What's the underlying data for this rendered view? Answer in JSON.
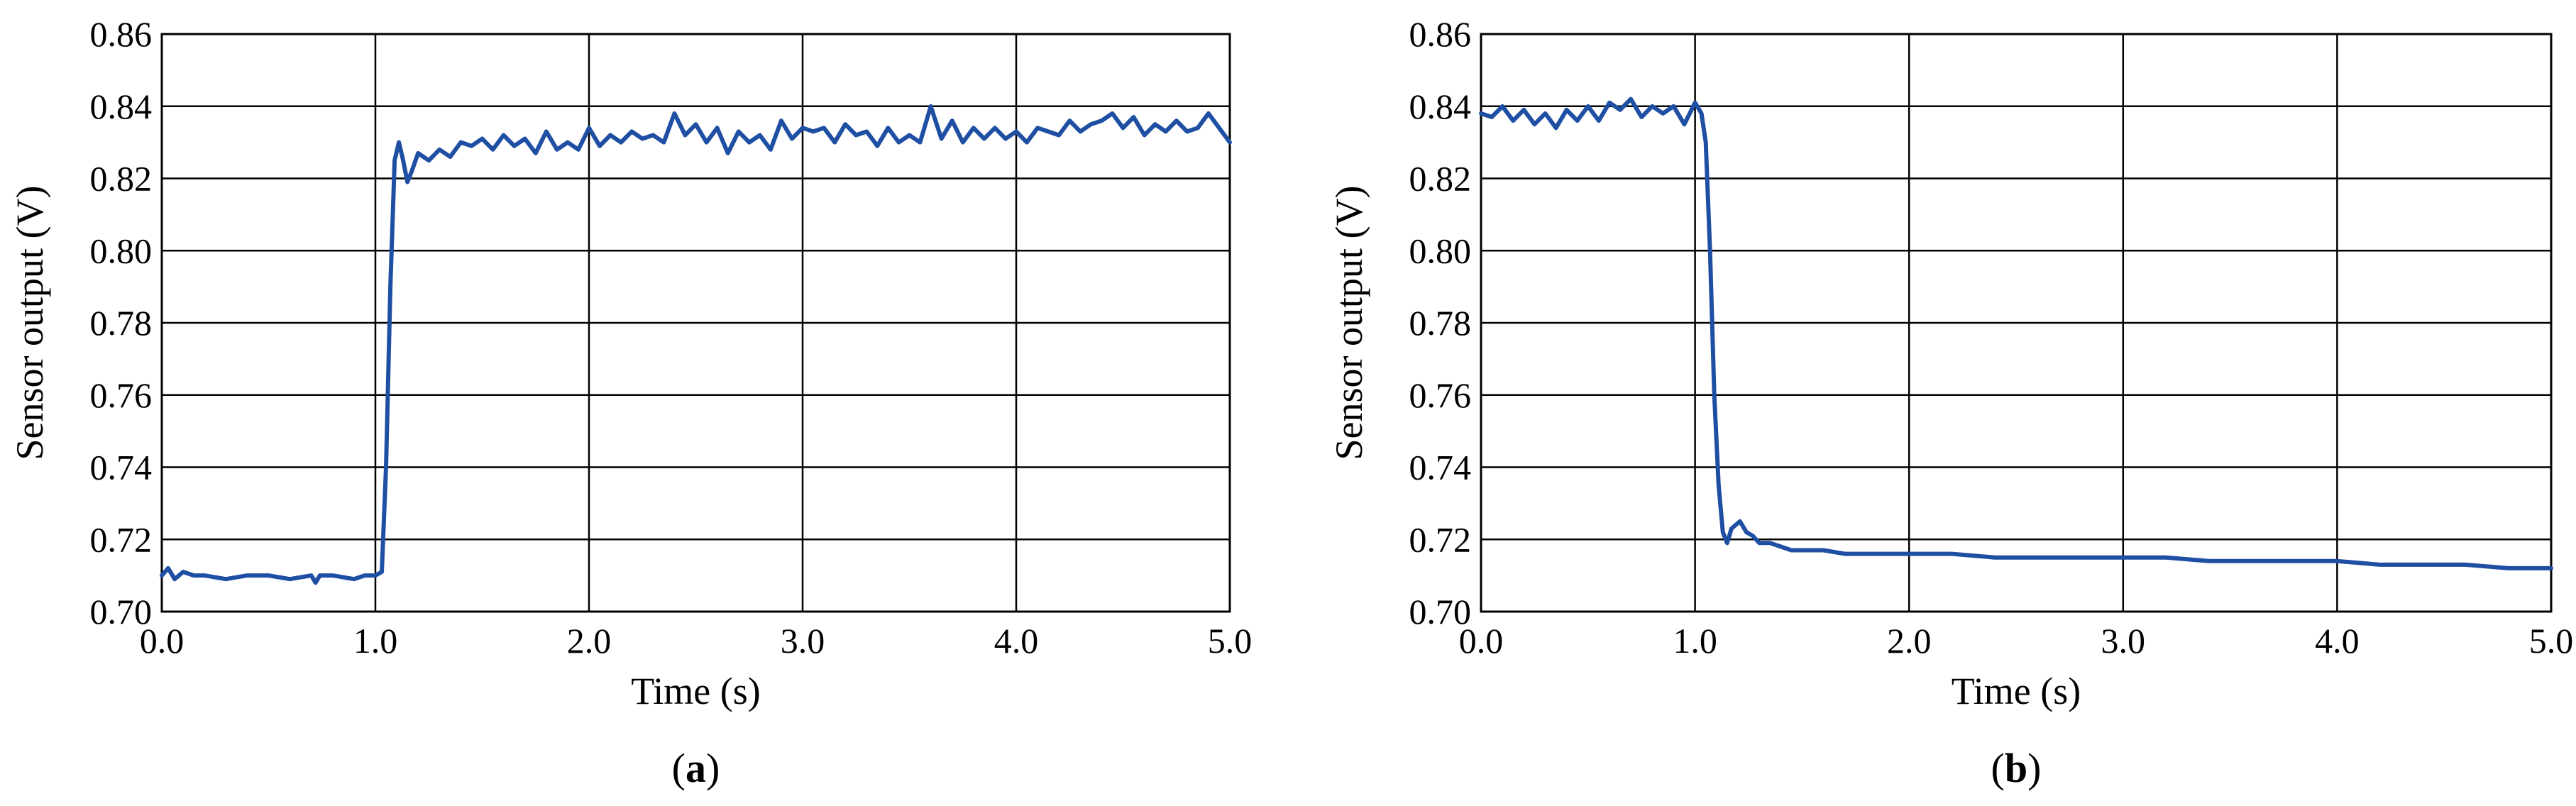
{
  "colors": {
    "line": "#1f4fa3",
    "grid": "#000000",
    "background": "#ffffff"
  },
  "chart_data": [
    {
      "type": "line",
      "panel_label": "a",
      "title": "",
      "xlabel": "Time (s)",
      "ylabel": "Sensor output (V)",
      "xlim": [
        0,
        5
      ],
      "ylim": [
        0.7,
        0.86
      ],
      "grid": true,
      "legend": "none",
      "x_ticks": [
        "0.0",
        "1.0",
        "2.0",
        "3.0",
        "4.0",
        "5.0"
      ],
      "y_ticks": [
        "0.70",
        "0.72",
        "0.74",
        "0.76",
        "0.78",
        "0.80",
        "0.82",
        "0.84",
        "0.86"
      ],
      "series": [
        {
          "x": [
            0.0,
            0.03,
            0.06,
            0.1,
            0.15,
            0.2,
            0.3,
            0.4,
            0.5,
            0.6,
            0.7,
            0.72,
            0.74,
            0.8,
            0.9,
            0.95,
            1.0,
            1.03,
            1.05,
            1.07,
            1.09,
            1.11,
            1.13,
            1.15,
            1.17,
            1.2,
            1.25,
            1.3,
            1.35,
            1.4,
            1.45,
            1.5,
            1.55,
            1.6,
            1.65,
            1.7,
            1.75,
            1.8,
            1.85,
            1.9,
            1.95,
            2.0,
            2.05,
            2.1,
            2.15,
            2.2,
            2.25,
            2.3,
            2.35,
            2.4,
            2.45,
            2.5,
            2.55,
            2.6,
            2.65,
            2.7,
            2.75,
            2.8,
            2.85,
            2.9,
            2.95,
            3.0,
            3.05,
            3.1,
            3.15,
            3.2,
            3.25,
            3.3,
            3.35,
            3.4,
            3.45,
            3.5,
            3.55,
            3.6,
            3.65,
            3.7,
            3.75,
            3.8,
            3.85,
            3.9,
            3.95,
            4.0,
            4.05,
            4.1,
            4.15,
            4.2,
            4.25,
            4.3,
            4.35,
            4.4,
            4.45,
            4.5,
            4.55,
            4.6,
            4.65,
            4.7,
            4.75,
            4.8,
            4.85,
            4.9,
            4.95,
            5.0
          ],
          "y": [
            0.71,
            0.712,
            0.709,
            0.711,
            0.71,
            0.71,
            0.709,
            0.71,
            0.71,
            0.709,
            0.71,
            0.708,
            0.71,
            0.71,
            0.709,
            0.71,
            0.71,
            0.711,
            0.74,
            0.79,
            0.825,
            0.83,
            0.825,
            0.819,
            0.822,
            0.827,
            0.825,
            0.828,
            0.826,
            0.83,
            0.829,
            0.831,
            0.828,
            0.832,
            0.829,
            0.831,
            0.827,
            0.833,
            0.828,
            0.83,
            0.828,
            0.834,
            0.829,
            0.832,
            0.83,
            0.833,
            0.831,
            0.832,
            0.83,
            0.838,
            0.832,
            0.835,
            0.83,
            0.834,
            0.827,
            0.833,
            0.83,
            0.832,
            0.828,
            0.836,
            0.831,
            0.834,
            0.833,
            0.834,
            0.83,
            0.835,
            0.832,
            0.833,
            0.829,
            0.834,
            0.83,
            0.832,
            0.83,
            0.84,
            0.831,
            0.836,
            0.83,
            0.834,
            0.831,
            0.834,
            0.831,
            0.833,
            0.83,
            0.834,
            0.833,
            0.832,
            0.836,
            0.833,
            0.835,
            0.836,
            0.838,
            0.834,
            0.837,
            0.832,
            0.835,
            0.833,
            0.836,
            0.833,
            0.834,
            0.838,
            0.834,
            0.83
          ]
        }
      ]
    },
    {
      "type": "line",
      "panel_label": "b",
      "title": "",
      "xlabel": "Time (s)",
      "ylabel": "Sensor output (V)",
      "xlim": [
        0,
        5
      ],
      "ylim": [
        0.7,
        0.86
      ],
      "grid": true,
      "legend": "none",
      "x_ticks": [
        "0.0",
        "1.0",
        "2.0",
        "3.0",
        "4.0",
        "5.0"
      ],
      "y_ticks": [
        "0.70",
        "0.72",
        "0.74",
        "0.76",
        "0.78",
        "0.80",
        "0.82",
        "0.84",
        "0.86"
      ],
      "series": [
        {
          "x": [
            0.0,
            0.05,
            0.1,
            0.15,
            0.2,
            0.25,
            0.3,
            0.35,
            0.4,
            0.45,
            0.5,
            0.55,
            0.6,
            0.65,
            0.7,
            0.75,
            0.8,
            0.85,
            0.9,
            0.95,
            1.0,
            1.03,
            1.05,
            1.07,
            1.09,
            1.11,
            1.13,
            1.15,
            1.17,
            1.19,
            1.21,
            1.24,
            1.27,
            1.3,
            1.35,
            1.4,
            1.45,
            1.5,
            1.6,
            1.7,
            1.8,
            1.9,
            2.0,
            2.2,
            2.4,
            2.6,
            2.8,
            3.0,
            3.2,
            3.4,
            3.6,
            3.8,
            4.0,
            4.2,
            4.4,
            4.6,
            4.8,
            5.0
          ],
          "y": [
            0.838,
            0.837,
            0.84,
            0.836,
            0.839,
            0.835,
            0.838,
            0.834,
            0.839,
            0.836,
            0.84,
            0.836,
            0.841,
            0.839,
            0.842,
            0.837,
            0.84,
            0.838,
            0.84,
            0.835,
            0.841,
            0.838,
            0.83,
            0.8,
            0.76,
            0.735,
            0.722,
            0.719,
            0.723,
            0.724,
            0.725,
            0.722,
            0.721,
            0.719,
            0.719,
            0.718,
            0.717,
            0.717,
            0.717,
            0.716,
            0.716,
            0.716,
            0.716,
            0.716,
            0.715,
            0.715,
            0.715,
            0.715,
            0.715,
            0.714,
            0.714,
            0.714,
            0.714,
            0.713,
            0.713,
            0.713,
            0.712,
            0.712
          ]
        }
      ]
    }
  ]
}
